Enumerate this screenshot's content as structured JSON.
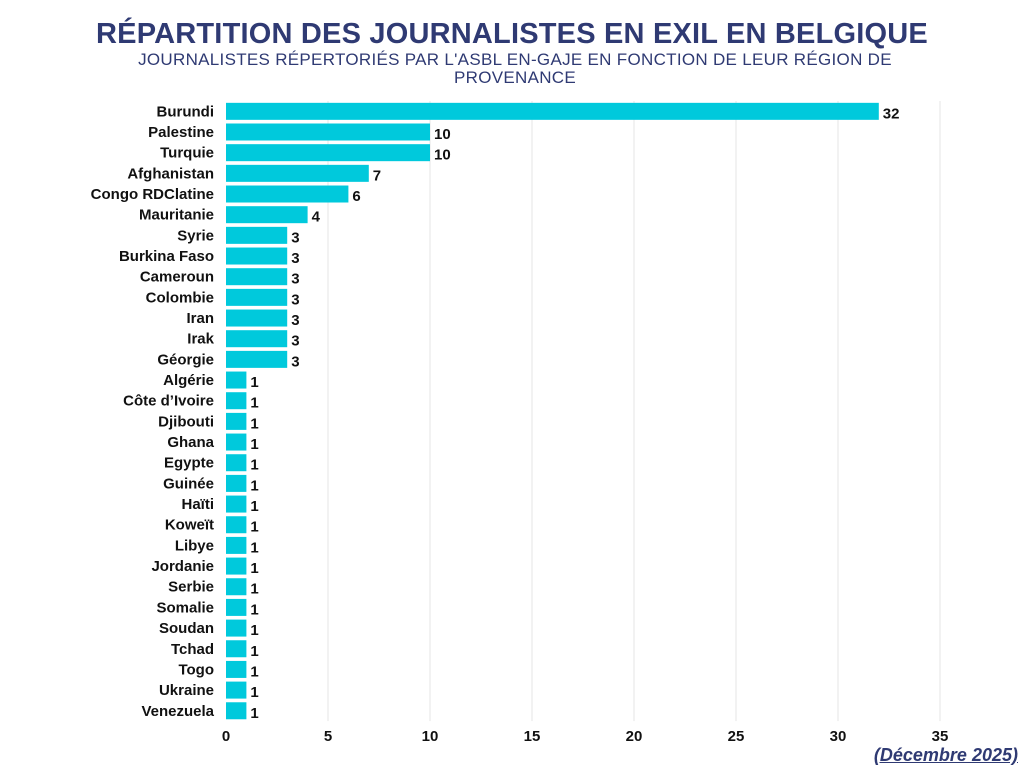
{
  "colors": {
    "bar": "#00c9dc",
    "title": "#2f3a73"
  },
  "chart_data": {
    "type": "bar",
    "orientation": "horizontal",
    "title": "RÉPARTITION DES JOURNALISTES EN EXIL EN BELGIQUE",
    "subtitle": "JOURNALISTES RÉPERTORIÉS PAR L'ASBL EN-GAJE EN FONCTION DE LEUR RÉGION DE PROVENANCE",
    "categories": [
      "Burundi",
      "Palestine",
      "Turquie",
      "Afghanistan",
      "Congo RDClatine",
      "Mauritanie",
      "Syrie",
      "Burkina Faso",
      "Cameroun",
      "Colombie",
      "Iran",
      "Irak",
      "Géorgie",
      "Algérie",
      "Côte d’Ivoire",
      "Djibouti",
      "Ghana",
      "Egypte",
      "Guinée",
      "Haïti",
      "Koweït",
      "Libye",
      "Jordanie",
      "Serbie",
      "Somalie",
      "Soudan",
      "Tchad",
      "Togo",
      "Ukraine",
      "Venezuela"
    ],
    "values": [
      32,
      10,
      10,
      7,
      6,
      4,
      3,
      3,
      3,
      3,
      3,
      3,
      3,
      1,
      1,
      1,
      1,
      1,
      1,
      1,
      1,
      1,
      1,
      1,
      1,
      1,
      1,
      1,
      1,
      1
    ],
    "xlim": [
      0,
      35
    ],
    "xticks": [
      0,
      5,
      10,
      15,
      20,
      25,
      30,
      35
    ],
    "grid": true,
    "xlabel": "",
    "ylabel": ""
  },
  "footnote": "(Décembre 2025)"
}
